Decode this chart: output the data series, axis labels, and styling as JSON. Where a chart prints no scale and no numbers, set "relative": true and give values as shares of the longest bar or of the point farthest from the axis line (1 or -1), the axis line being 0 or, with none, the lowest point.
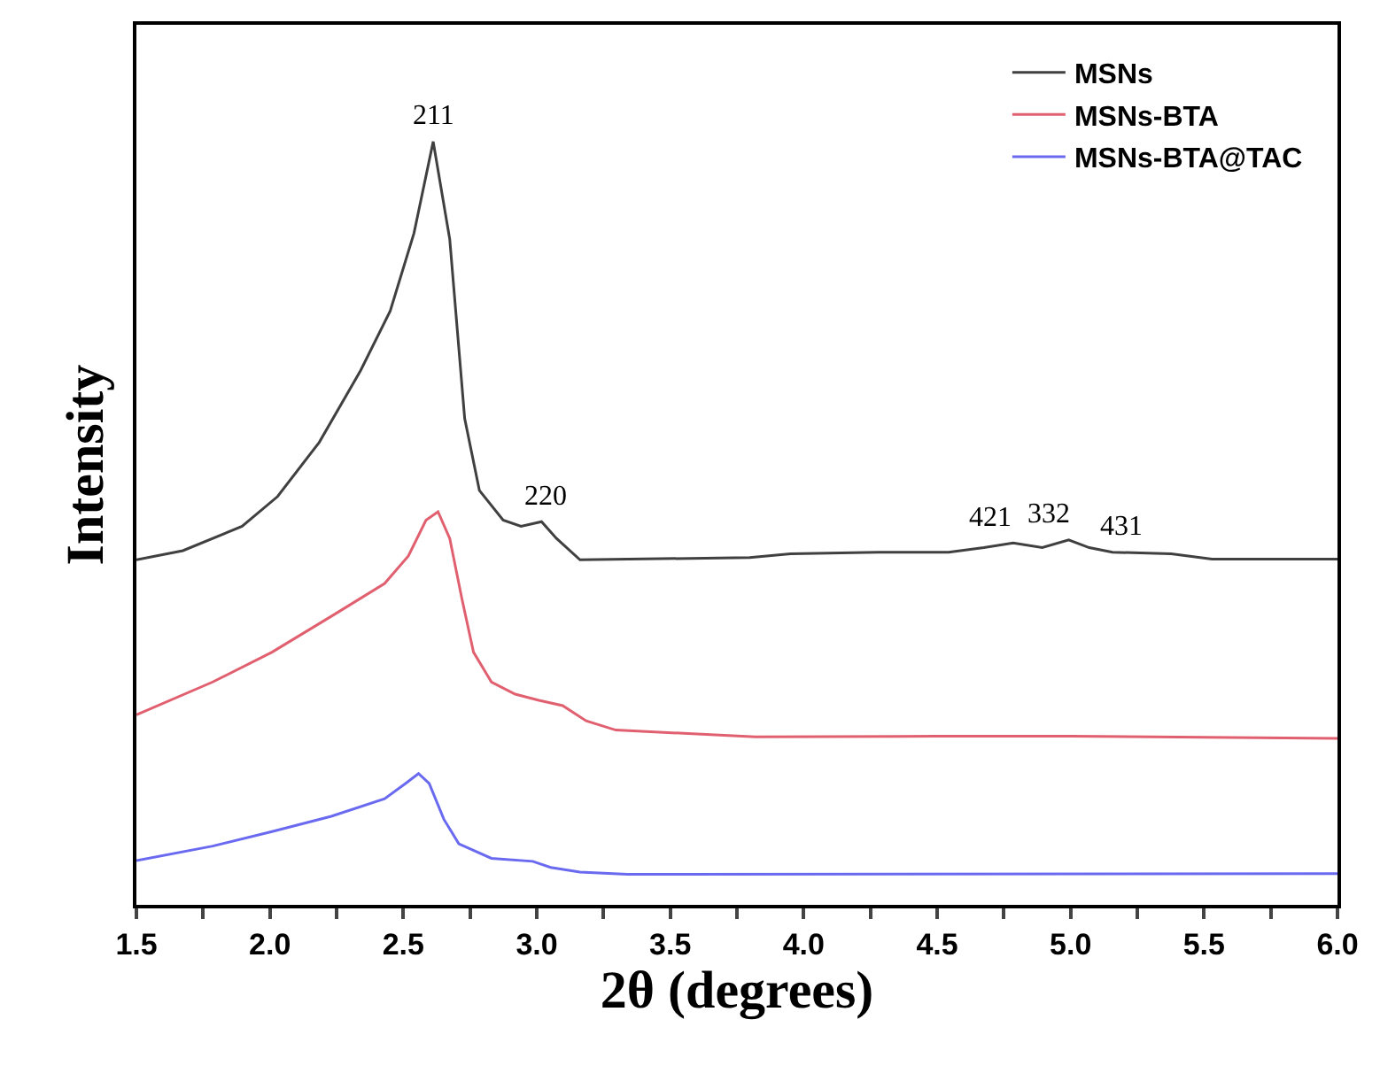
{
  "chart_data": {
    "type": "line",
    "relative": true,
    "xlabel": "2θ (degrees)",
    "ylabel": "Intensity",
    "xlim": [
      1.5,
      6.0
    ],
    "xticks": [
      {
        "value": 1.5,
        "label": "1.5"
      },
      {
        "value": 1.75,
        "label": null
      },
      {
        "value": 2.0,
        "label": "2.0"
      },
      {
        "value": 2.25,
        "label": null
      },
      {
        "value": 2.5,
        "label": "2.5"
      },
      {
        "value": 2.75,
        "label": null
      },
      {
        "value": 3.0,
        "label": "3.0"
      },
      {
        "value": 3.25,
        "label": null
      },
      {
        "value": 3.5,
        "label": "3.5"
      },
      {
        "value": 3.75,
        "label": null
      },
      {
        "value": 4.0,
        "label": "4.0"
      },
      {
        "value": 4.25,
        "label": null
      },
      {
        "value": 4.5,
        "label": "4.5"
      },
      {
        "value": 4.75,
        "label": null
      },
      {
        "value": 5.0,
        "label": "5.0"
      },
      {
        "value": 5.25,
        "label": null
      },
      {
        "value": 5.5,
        "label": "5.5"
      },
      {
        "value": 5.75,
        "label": null
      },
      {
        "value": 6.0,
        "label": "6.0"
      }
    ],
    "tick_labels": "x",
    "legend": "top right",
    "marker": "none",
    "line_style": "solid",
    "series": [
      {
        "name": "MSNs",
        "color": "#404040",
        "x": [
          1.5,
          1.674,
          1.896,
          2.029,
          2.185,
          2.34,
          2.451,
          2.54,
          2.612,
          2.674,
          2.73,
          2.785,
          2.874,
          2.941,
          3.018,
          3.074,
          3.162,
          3.798,
          3.951,
          4.28,
          4.543,
          4.675,
          4.785,
          4.894,
          4.993,
          5.07,
          5.157,
          5.377,
          5.53,
          6.0
        ],
        "values": [
          0.452,
          0.464,
          0.496,
          0.535,
          0.606,
          0.7,
          0.778,
          0.88,
          1.0,
          0.872,
          0.637,
          0.543,
          0.504,
          0.496,
          0.502,
          0.48,
          0.452,
          0.455,
          0.46,
          0.462,
          0.462,
          0.468,
          0.474,
          0.468,
          0.478,
          0.468,
          0.462,
          0.46,
          0.453,
          0.453
        ]
      },
      {
        "name": "MSNs-BTA",
        "color": "#e06070",
        "x": [
          1.5,
          1.786,
          2.008,
          2.23,
          2.43,
          2.519,
          2.585,
          2.63,
          2.674,
          2.719,
          2.763,
          2.83,
          2.919,
          3.008,
          3.097,
          3.185,
          3.296,
          3.819,
          4.5,
          5.0,
          6.0
        ],
        "values": [
          0.249,
          0.292,
          0.331,
          0.378,
          0.421,
          0.457,
          0.504,
          0.515,
          0.48,
          0.402,
          0.331,
          0.292,
          0.276,
          0.268,
          0.261,
          0.241,
          0.229,
          0.22,
          0.221,
          0.221,
          0.218
        ]
      },
      {
        "name": "MSNs-BTA@TAC",
        "color": "#6a6af0",
        "x": [
          1.5,
          1.786,
          2.008,
          2.23,
          2.43,
          2.508,
          2.557,
          2.597,
          2.652,
          2.708,
          2.83,
          2.985,
          3.052,
          3.162,
          3.34,
          6.0
        ],
        "values": [
          0.058,
          0.077,
          0.096,
          0.116,
          0.139,
          0.159,
          0.172,
          0.159,
          0.112,
          0.08,
          0.061,
          0.057,
          0.049,
          0.043,
          0.04,
          0.041
        ]
      }
    ],
    "annotations": [
      {
        "text": "211",
        "x": 2.61,
        "y": 1.0
      },
      {
        "text": "220",
        "x": 3.03,
        "y": 0.502
      },
      {
        "text": "421",
        "x": 4.7,
        "y": 0.474
      },
      {
        "text": "332",
        "x": 4.92,
        "y": 0.478
      },
      {
        "text": "431",
        "x": 5.19,
        "y": 0.462
      }
    ]
  }
}
